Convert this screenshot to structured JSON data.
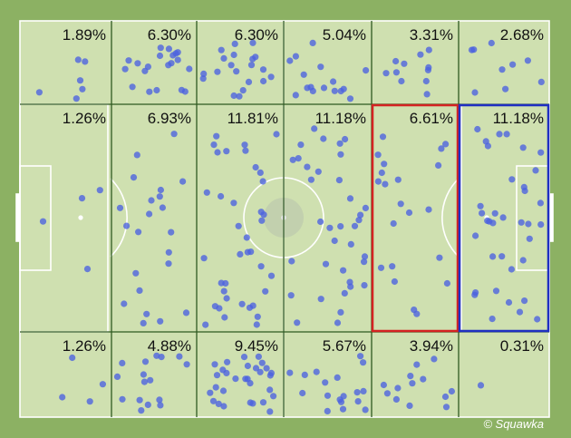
{
  "colors": {
    "outer": "#8cb163",
    "pitch": "#cfe0b0",
    "pitch_lines": "#ffffff",
    "grid_lines": "#2f5a21",
    "dots": "#4a62e0",
    "highlight_red": "#d42222",
    "highlight_blue": "#1f2fc2"
  },
  "brand": {
    "label": "© Squawka",
    "icon": "copyright-icon"
  },
  "chart_data": {
    "type": "heatmap",
    "rows": 3,
    "cols": 6,
    "cell_labels": [
      [
        "1.89%",
        "6.30%",
        "6.30%",
        "5.04%",
        "3.31%",
        "2.68%"
      ],
      [
        "1.26%",
        "6.93%",
        "11.81%",
        "11.18%",
        "6.61%",
        "11.18%"
      ],
      [
        "1.26%",
        "4.88%",
        "9.45%",
        "5.67%",
        "3.94%",
        "0.31%"
      ]
    ],
    "cell_values": [
      [
        1.89,
        6.3,
        6.3,
        5.04,
        3.31,
        2.68
      ],
      [
        1.26,
        6.93,
        11.81,
        11.18,
        6.61,
        11.18
      ],
      [
        1.26,
        4.88,
        9.45,
        5.67,
        3.94,
        0.31
      ]
    ],
    "highlights": [
      {
        "row": 1,
        "col": 4,
        "color": "red"
      },
      {
        "row": 1,
        "col": 5,
        "color": "blue"
      }
    ]
  }
}
